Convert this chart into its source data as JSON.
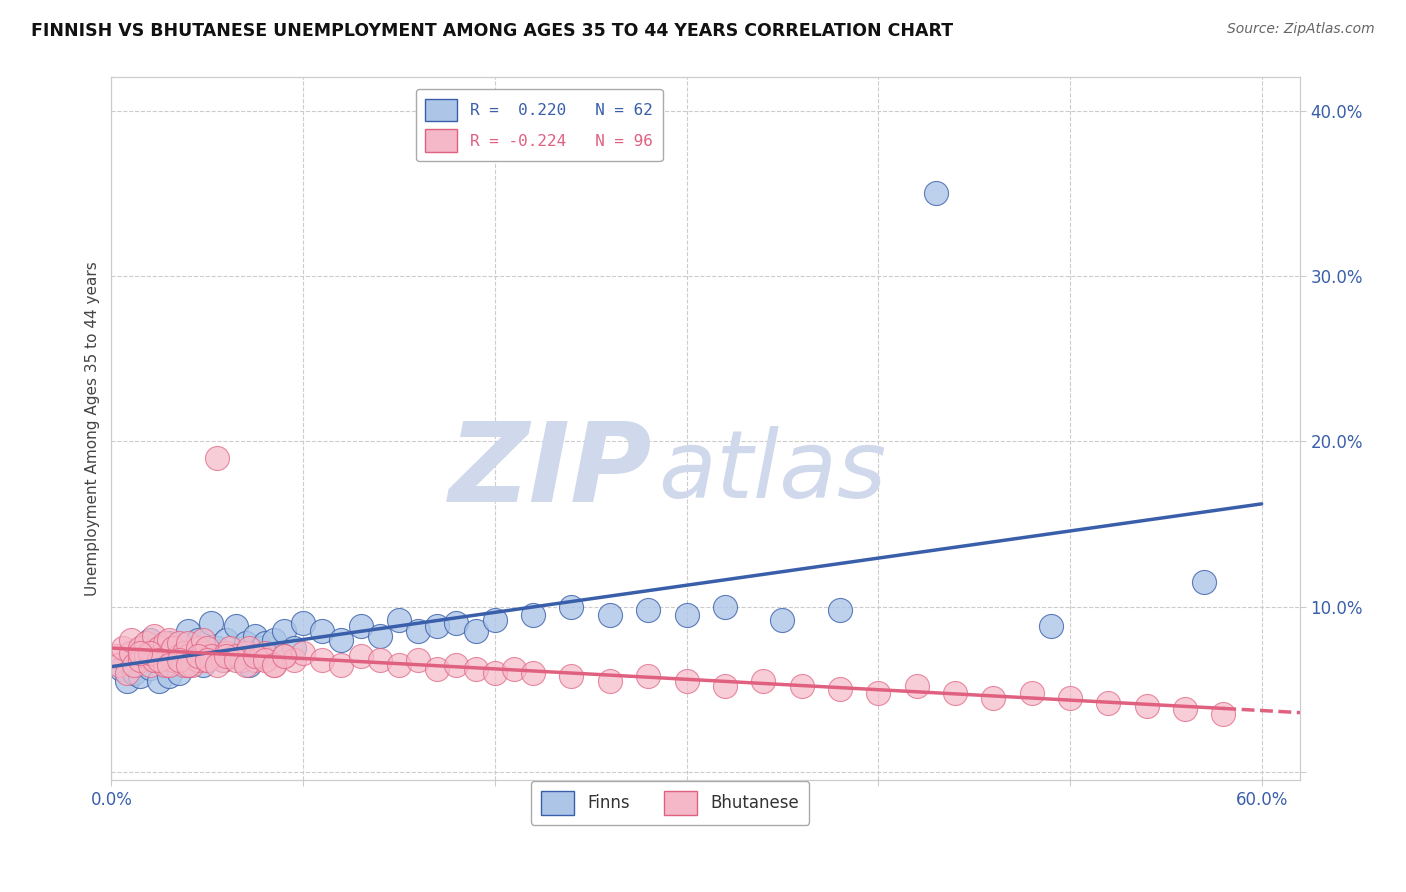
{
  "title": "FINNISH VS BHUTANESE UNEMPLOYMENT AMONG AGES 35 TO 44 YEARS CORRELATION CHART",
  "source_text": "Source: ZipAtlas.com",
  "ylabel": "Unemployment Among Ages 35 to 44 years",
  "xlim": [
    0.0,
    0.62
  ],
  "ylim": [
    -0.005,
    0.42
  ],
  "xticks": [
    0.0,
    0.1,
    0.2,
    0.3,
    0.4,
    0.5,
    0.6
  ],
  "xtick_labels": [
    "0.0%",
    "",
    "",
    "",
    "",
    "",
    "60.0%"
  ],
  "yticks_right": [
    0.0,
    0.1,
    0.2,
    0.3,
    0.4
  ],
  "ytick_labels_right": [
    "",
    "10.0%",
    "20.0%",
    "30.0%",
    "40.0%"
  ],
  "color_finn": "#adc6e8",
  "color_bhut": "#f5b8c8",
  "line_color_finn": "#3a5faa",
  "line_color_bhut": "#e06080",
  "watermark_zip": "ZIP",
  "watermark_atlas": "atlas",
  "watermark_color": "#d0d8ec",
  "background_color": "#ffffff",
  "grid_color": "#cccccc",
  "finn_x": [
    0.005,
    0.008,
    0.01,
    0.012,
    0.015,
    0.015,
    0.018,
    0.02,
    0.02,
    0.022,
    0.025,
    0.025,
    0.028,
    0.03,
    0.03,
    0.032,
    0.035,
    0.035,
    0.038,
    0.04,
    0.04,
    0.042,
    0.045,
    0.048,
    0.05,
    0.052,
    0.055,
    0.058,
    0.06,
    0.062,
    0.065,
    0.068,
    0.07,
    0.072,
    0.075,
    0.078,
    0.08,
    0.085,
    0.09,
    0.095,
    0.1,
    0.11,
    0.12,
    0.13,
    0.14,
    0.15,
    0.16,
    0.17,
    0.18,
    0.19,
    0.2,
    0.22,
    0.24,
    0.26,
    0.28,
    0.3,
    0.32,
    0.35,
    0.38,
    0.43,
    0.49,
    0.57
  ],
  "finn_y": [
    0.062,
    0.055,
    0.072,
    0.06,
    0.065,
    0.058,
    0.07,
    0.063,
    0.08,
    0.068,
    0.075,
    0.055,
    0.065,
    0.058,
    0.078,
    0.068,
    0.072,
    0.06,
    0.075,
    0.065,
    0.085,
    0.07,
    0.08,
    0.065,
    0.072,
    0.09,
    0.075,
    0.068,
    0.08,
    0.07,
    0.088,
    0.072,
    0.078,
    0.065,
    0.082,
    0.075,
    0.078,
    0.08,
    0.085,
    0.075,
    0.09,
    0.085,
    0.08,
    0.088,
    0.082,
    0.092,
    0.085,
    0.088,
    0.09,
    0.085,
    0.092,
    0.095,
    0.1,
    0.095,
    0.098,
    0.095,
    0.1,
    0.092,
    0.098,
    0.35,
    0.088,
    0.115
  ],
  "bhut_x": [
    0.002,
    0.004,
    0.006,
    0.008,
    0.01,
    0.01,
    0.012,
    0.015,
    0.015,
    0.018,
    0.018,
    0.02,
    0.02,
    0.022,
    0.022,
    0.025,
    0.025,
    0.028,
    0.028,
    0.03,
    0.03,
    0.032,
    0.032,
    0.035,
    0.035,
    0.038,
    0.038,
    0.04,
    0.04,
    0.042,
    0.045,
    0.045,
    0.048,
    0.048,
    0.05,
    0.05,
    0.052,
    0.055,
    0.058,
    0.06,
    0.062,
    0.065,
    0.068,
    0.07,
    0.072,
    0.075,
    0.078,
    0.08,
    0.085,
    0.09,
    0.095,
    0.1,
    0.11,
    0.12,
    0.13,
    0.14,
    0.15,
    0.16,
    0.17,
    0.18,
    0.19,
    0.2,
    0.21,
    0.22,
    0.24,
    0.26,
    0.28,
    0.3,
    0.32,
    0.34,
    0.36,
    0.38,
    0.4,
    0.42,
    0.44,
    0.46,
    0.48,
    0.5,
    0.52,
    0.54,
    0.56,
    0.58,
    0.02,
    0.025,
    0.03,
    0.015,
    0.035,
    0.04,
    0.045,
    0.05,
    0.055,
    0.06,
    0.065,
    0.07,
    0.075,
    0.08,
    0.085,
    0.09
  ],
  "bhut_y": [
    0.07,
    0.065,
    0.075,
    0.06,
    0.072,
    0.08,
    0.065,
    0.075,
    0.068,
    0.07,
    0.078,
    0.065,
    0.072,
    0.068,
    0.082,
    0.075,
    0.07,
    0.078,
    0.065,
    0.072,
    0.08,
    0.068,
    0.075,
    0.07,
    0.078,
    0.065,
    0.072,
    0.07,
    0.078,
    0.065,
    0.075,
    0.068,
    0.072,
    0.08,
    0.068,
    0.075,
    0.07,
    0.19,
    0.068,
    0.072,
    0.075,
    0.07,
    0.068,
    0.072,
    0.075,
    0.068,
    0.07,
    0.072,
    0.065,
    0.07,
    0.068,
    0.072,
    0.068,
    0.065,
    0.07,
    0.068,
    0.065,
    0.068,
    0.062,
    0.065,
    0.062,
    0.06,
    0.062,
    0.06,
    0.058,
    0.055,
    0.058,
    0.055,
    0.052,
    0.055,
    0.052,
    0.05,
    0.048,
    0.052,
    0.048,
    0.045,
    0.048,
    0.045,
    0.042,
    0.04,
    0.038,
    0.035,
    0.072,
    0.068,
    0.065,
    0.072,
    0.068,
    0.065,
    0.07,
    0.068,
    0.065,
    0.07,
    0.068,
    0.065,
    0.07,
    0.068,
    0.065,
    0.07
  ]
}
